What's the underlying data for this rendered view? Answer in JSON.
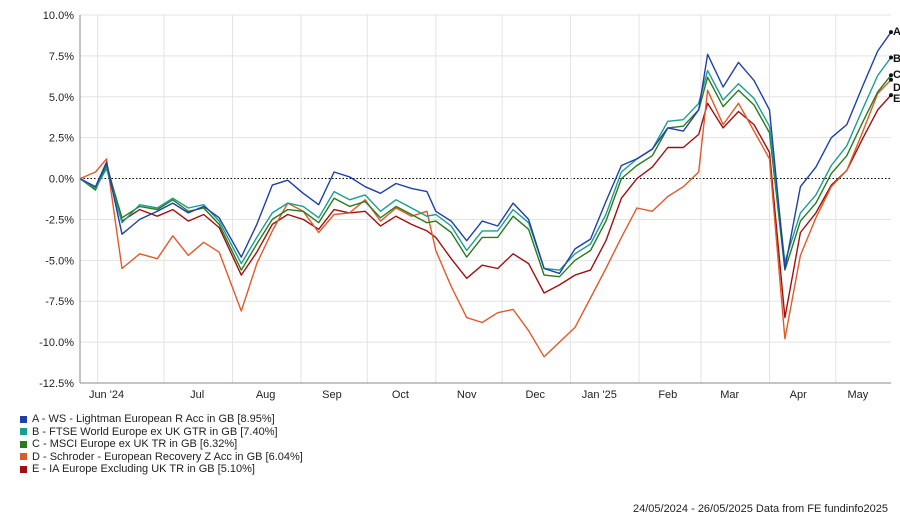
{
  "chart_data": {
    "type": "line",
    "x_tick_labels": [
      "Jun '24",
      "Jul",
      "Aug",
      "Sep",
      "Oct",
      "Nov",
      "Dec",
      "Jan '25",
      "Feb",
      "Mar",
      "Apr",
      "May"
    ],
    "y_tick_labels": [
      "10.0%",
      "7.5%",
      "5.0%",
      "2.5%",
      "0.0%",
      "-2.5%",
      "-5.0%",
      "-7.5%",
      "-10.0%",
      "-12.5%"
    ],
    "ylim": [
      -12.5,
      10.0
    ],
    "date_range": [
      "2024-05-24",
      "2025-05-26"
    ],
    "zero_line": "dotted",
    "grid": true,
    "series": [
      {
        "code": "A",
        "name": "A - WS - Lightman European R Acc in GB [8.95%]",
        "color": "#1f3faa",
        "points": [
          [
            "2024-05-24",
            0
          ],
          [
            "2024-05-31",
            -0.5
          ],
          [
            "2024-06-05",
            1.0
          ],
          [
            "2024-06-12",
            -3.4
          ],
          [
            "2024-06-20",
            -2.5
          ],
          [
            "2024-06-28",
            -2.0
          ],
          [
            "2024-07-05",
            -1.5
          ],
          [
            "2024-07-12",
            -2.1
          ],
          [
            "2024-07-19",
            -1.7
          ],
          [
            "2024-07-26",
            -2.4
          ],
          [
            "2024-08-05",
            -4.8
          ],
          [
            "2024-08-12",
            -2.8
          ],
          [
            "2024-08-19",
            -0.4
          ],
          [
            "2024-08-26",
            -0.1
          ],
          [
            "2024-09-02",
            -0.9
          ],
          [
            "2024-09-09",
            -1.6
          ],
          [
            "2024-09-16",
            0.4
          ],
          [
            "2024-09-23",
            0.1
          ],
          [
            "2024-09-30",
            -0.5
          ],
          [
            "2024-10-07",
            -0.9
          ],
          [
            "2024-10-14",
            -0.3
          ],
          [
            "2024-10-21",
            -0.6
          ],
          [
            "2024-10-28",
            -0.8
          ],
          [
            "2024-11-01",
            -2.0
          ],
          [
            "2024-11-08",
            -2.6
          ],
          [
            "2024-11-15",
            -3.8
          ],
          [
            "2024-11-22",
            -2.6
          ],
          [
            "2024-11-29",
            -2.9
          ],
          [
            "2024-12-06",
            -1.5
          ],
          [
            "2024-12-13",
            -2.5
          ],
          [
            "2024-12-20",
            -5.5
          ],
          [
            "2024-12-27",
            -5.8
          ],
          [
            "2025-01-03",
            -4.3
          ],
          [
            "2025-01-10",
            -3.7
          ],
          [
            "2025-01-17",
            -1.4
          ],
          [
            "2025-01-24",
            0.8
          ],
          [
            "2025-01-31",
            1.2
          ],
          [
            "2025-02-07",
            1.8
          ],
          [
            "2025-02-14",
            3.1
          ],
          [
            "2025-02-21",
            2.9
          ],
          [
            "2025-02-28",
            4.2
          ],
          [
            "2025-03-04",
            7.6
          ],
          [
            "2025-03-11",
            5.6
          ],
          [
            "2025-03-18",
            7.1
          ],
          [
            "2025-03-25",
            6.0
          ],
          [
            "2025-04-01",
            4.2
          ],
          [
            "2025-04-08",
            -5.5
          ],
          [
            "2025-04-15",
            -0.5
          ],
          [
            "2025-04-22",
            0.7
          ],
          [
            "2025-04-29",
            2.5
          ],
          [
            "2025-05-06",
            3.3
          ],
          [
            "2025-05-13",
            5.6
          ],
          [
            "2025-05-20",
            7.8
          ],
          [
            "2025-05-26",
            8.95
          ]
        ]
      },
      {
        "code": "B",
        "name": "B - FTSE World Europe ex UK GTR in GB [7.40%]",
        "color": "#1a9e8f",
        "points": [
          [
            "2024-05-24",
            0
          ],
          [
            "2024-05-31",
            -0.6
          ],
          [
            "2024-06-05",
            0.6
          ],
          [
            "2024-06-12",
            -2.7
          ],
          [
            "2024-06-20",
            -1.6
          ],
          [
            "2024-06-28",
            -1.8
          ],
          [
            "2024-07-05",
            -1.2
          ],
          [
            "2024-07-12",
            -1.8
          ],
          [
            "2024-07-19",
            -1.6
          ],
          [
            "2024-07-26",
            -2.6
          ],
          [
            "2024-08-05",
            -5.2
          ],
          [
            "2024-08-12",
            -3.6
          ],
          [
            "2024-08-19",
            -2.1
          ],
          [
            "2024-08-26",
            -1.5
          ],
          [
            "2024-09-02",
            -1.7
          ],
          [
            "2024-09-09",
            -2.4
          ],
          [
            "2024-09-16",
            -0.8
          ],
          [
            "2024-09-23",
            -1.3
          ],
          [
            "2024-09-30",
            -1.0
          ],
          [
            "2024-10-07",
            -2.0
          ],
          [
            "2024-10-14",
            -1.3
          ],
          [
            "2024-10-21",
            -1.8
          ],
          [
            "2024-10-28",
            -2.3
          ],
          [
            "2024-11-01",
            -2.2
          ],
          [
            "2024-11-08",
            -2.9
          ],
          [
            "2024-11-15",
            -4.4
          ],
          [
            "2024-11-22",
            -3.2
          ],
          [
            "2024-11-29",
            -3.2
          ],
          [
            "2024-12-06",
            -1.9
          ],
          [
            "2024-12-13",
            -2.7
          ],
          [
            "2024-12-20",
            -5.5
          ],
          [
            "2024-12-27",
            -5.6
          ],
          [
            "2025-01-03",
            -4.6
          ],
          [
            "2025-01-10",
            -4.0
          ],
          [
            "2025-01-17",
            -2.2
          ],
          [
            "2025-01-24",
            0.4
          ],
          [
            "2025-01-31",
            1.2
          ],
          [
            "2025-02-07",
            1.8
          ],
          [
            "2025-02-14",
            3.5
          ],
          [
            "2025-02-21",
            3.6
          ],
          [
            "2025-02-28",
            4.6
          ],
          [
            "2025-03-04",
            6.6
          ],
          [
            "2025-03-11",
            4.8
          ],
          [
            "2025-03-18",
            5.8
          ],
          [
            "2025-03-25",
            4.9
          ],
          [
            "2025-04-01",
            3.2
          ],
          [
            "2025-04-08",
            -5.1
          ],
          [
            "2025-04-15",
            -2.1
          ],
          [
            "2025-04-22",
            -1.0
          ],
          [
            "2025-04-29",
            0.8
          ],
          [
            "2025-05-06",
            2.0
          ],
          [
            "2025-05-13",
            4.2
          ],
          [
            "2025-05-20",
            6.3
          ],
          [
            "2025-05-26",
            7.4
          ]
        ]
      },
      {
        "code": "C",
        "name": "C - MSCI Europe ex UK TR in GB [6.32%]",
        "color": "#2a7a1c",
        "points": [
          [
            "2024-05-24",
            0
          ],
          [
            "2024-05-31",
            -0.7
          ],
          [
            "2024-06-05",
            0.8
          ],
          [
            "2024-06-12",
            -2.4
          ],
          [
            "2024-06-20",
            -1.7
          ],
          [
            "2024-06-28",
            -1.9
          ],
          [
            "2024-07-05",
            -1.3
          ],
          [
            "2024-07-12",
            -2.0
          ],
          [
            "2024-07-19",
            -1.8
          ],
          [
            "2024-07-26",
            -2.8
          ],
          [
            "2024-08-05",
            -5.6
          ],
          [
            "2024-08-12",
            -4.0
          ],
          [
            "2024-08-19",
            -2.5
          ],
          [
            "2024-08-26",
            -1.9
          ],
          [
            "2024-09-02",
            -2.0
          ],
          [
            "2024-09-09",
            -2.7
          ],
          [
            "2024-09-16",
            -1.2
          ],
          [
            "2024-09-23",
            -1.7
          ],
          [
            "2024-09-30",
            -1.4
          ],
          [
            "2024-10-07",
            -2.4
          ],
          [
            "2024-10-14",
            -1.7
          ],
          [
            "2024-10-21",
            -2.2
          ],
          [
            "2024-10-28",
            -2.7
          ],
          [
            "2024-11-01",
            -2.6
          ],
          [
            "2024-11-08",
            -3.3
          ],
          [
            "2024-11-15",
            -4.8
          ],
          [
            "2024-11-22",
            -3.6
          ],
          [
            "2024-11-29",
            -3.6
          ],
          [
            "2024-12-06",
            -2.3
          ],
          [
            "2024-12-13",
            -3.1
          ],
          [
            "2024-12-20",
            -5.9
          ],
          [
            "2024-12-27",
            -6.0
          ],
          [
            "2025-01-03",
            -5.0
          ],
          [
            "2025-01-10",
            -4.4
          ],
          [
            "2025-01-17",
            -2.6
          ],
          [
            "2025-01-24",
            0.0
          ],
          [
            "2025-01-31",
            0.8
          ],
          [
            "2025-02-07",
            1.4
          ],
          [
            "2025-02-14",
            3.1
          ],
          [
            "2025-02-21",
            3.2
          ],
          [
            "2025-02-28",
            4.2
          ],
          [
            "2025-03-04",
            6.2
          ],
          [
            "2025-03-11",
            4.4
          ],
          [
            "2025-03-18",
            5.4
          ],
          [
            "2025-03-25",
            4.5
          ],
          [
            "2025-04-01",
            2.8
          ],
          [
            "2025-04-08",
            -5.6
          ],
          [
            "2025-04-15",
            -2.6
          ],
          [
            "2025-04-22",
            -1.5
          ],
          [
            "2025-04-29",
            0.3
          ],
          [
            "2025-05-06",
            1.4
          ],
          [
            "2025-05-13",
            3.4
          ],
          [
            "2025-05-20",
            5.3
          ],
          [
            "2025-05-26",
            6.32
          ]
        ]
      },
      {
        "code": "D",
        "name": "D - Schroder - European Recovery Z Acc in GB [6.04%]",
        "color": "#e05a2a",
        "points": [
          [
            "2024-05-24",
            0
          ],
          [
            "2024-05-31",
            0.4
          ],
          [
            "2024-06-05",
            1.2
          ],
          [
            "2024-06-12",
            -5.5
          ],
          [
            "2024-06-20",
            -4.6
          ],
          [
            "2024-06-28",
            -4.9
          ],
          [
            "2024-07-05",
            -3.5
          ],
          [
            "2024-07-12",
            -4.7
          ],
          [
            "2024-07-19",
            -3.9
          ],
          [
            "2024-07-26",
            -4.5
          ],
          [
            "2024-08-05",
            -8.1
          ],
          [
            "2024-08-12",
            -5.2
          ],
          [
            "2024-08-19",
            -3.2
          ],
          [
            "2024-08-26",
            -1.5
          ],
          [
            "2024-09-02",
            -2.0
          ],
          [
            "2024-09-09",
            -3.3
          ],
          [
            "2024-09-16",
            -2.2
          ],
          [
            "2024-09-23",
            -2.1
          ],
          [
            "2024-09-30",
            -1.3
          ],
          [
            "2024-10-07",
            -2.6
          ],
          [
            "2024-10-14",
            -1.8
          ],
          [
            "2024-10-21",
            -2.3
          ],
          [
            "2024-10-28",
            -2.0
          ],
          [
            "2024-11-01",
            -4.4
          ],
          [
            "2024-11-08",
            -6.6
          ],
          [
            "2024-11-15",
            -8.5
          ],
          [
            "2024-11-22",
            -8.8
          ],
          [
            "2024-11-29",
            -8.2
          ],
          [
            "2024-12-06",
            -8.0
          ],
          [
            "2024-12-13",
            -9.3
          ],
          [
            "2024-12-20",
            -10.9
          ],
          [
            "2024-12-27",
            -10.0
          ],
          [
            "2025-01-03",
            -9.1
          ],
          [
            "2025-01-10",
            -7.3
          ],
          [
            "2025-01-17",
            -5.5
          ],
          [
            "2025-01-24",
            -3.6
          ],
          [
            "2025-01-31",
            -1.8
          ],
          [
            "2025-02-07",
            -2.0
          ],
          [
            "2025-02-14",
            -1.1
          ],
          [
            "2025-02-21",
            -0.5
          ],
          [
            "2025-02-28",
            0.4
          ],
          [
            "2025-03-04",
            5.4
          ],
          [
            "2025-03-11",
            3.3
          ],
          [
            "2025-03-18",
            4.6
          ],
          [
            "2025-03-25",
            2.9
          ],
          [
            "2025-04-01",
            1.2
          ],
          [
            "2025-04-08",
            -9.8
          ],
          [
            "2025-04-15",
            -4.7
          ],
          [
            "2025-04-22",
            -2.4
          ],
          [
            "2025-04-29",
            -0.5
          ],
          [
            "2025-05-06",
            0.5
          ],
          [
            "2025-05-13",
            2.8
          ],
          [
            "2025-05-20",
            5.2
          ],
          [
            "2025-05-26",
            6.04
          ]
        ]
      },
      {
        "code": "E",
        "name": "E - IA Europe Excluding UK TR in GB [5.10%]",
        "color": "#a01010",
        "points": [
          [
            "2024-05-24",
            0
          ],
          [
            "2024-05-31",
            -0.6
          ],
          [
            "2024-06-05",
            0.9
          ],
          [
            "2024-06-12",
            -2.6
          ],
          [
            "2024-06-20",
            -1.9
          ],
          [
            "2024-06-28",
            -2.3
          ],
          [
            "2024-07-05",
            -1.9
          ],
          [
            "2024-07-12",
            -2.6
          ],
          [
            "2024-07-19",
            -2.2
          ],
          [
            "2024-07-26",
            -3.0
          ],
          [
            "2024-08-05",
            -5.9
          ],
          [
            "2024-08-12",
            -4.5
          ],
          [
            "2024-08-19",
            -2.8
          ],
          [
            "2024-08-26",
            -2.2
          ],
          [
            "2024-09-02",
            -2.5
          ],
          [
            "2024-09-09",
            -3.1
          ],
          [
            "2024-09-16",
            -1.9
          ],
          [
            "2024-09-23",
            -2.1
          ],
          [
            "2024-09-30",
            -2.0
          ],
          [
            "2024-10-07",
            -2.9
          ],
          [
            "2024-10-14",
            -2.3
          ],
          [
            "2024-10-21",
            -2.8
          ],
          [
            "2024-10-28",
            -3.2
          ],
          [
            "2024-11-01",
            -3.6
          ],
          [
            "2024-11-08",
            -4.9
          ],
          [
            "2024-11-15",
            -6.1
          ],
          [
            "2024-11-22",
            -5.3
          ],
          [
            "2024-11-29",
            -5.5
          ],
          [
            "2024-12-06",
            -4.6
          ],
          [
            "2024-12-13",
            -5.2
          ],
          [
            "2024-12-20",
            -7.0
          ],
          [
            "2024-12-27",
            -6.5
          ],
          [
            "2025-01-03",
            -5.9
          ],
          [
            "2025-01-10",
            -5.6
          ],
          [
            "2025-01-17",
            -3.8
          ],
          [
            "2025-01-24",
            -1.2
          ],
          [
            "2025-01-31",
            0.0
          ],
          [
            "2025-02-07",
            0.7
          ],
          [
            "2025-02-14",
            1.9
          ],
          [
            "2025-02-21",
            1.9
          ],
          [
            "2025-02-28",
            2.7
          ],
          [
            "2025-03-04",
            4.6
          ],
          [
            "2025-03-11",
            3.1
          ],
          [
            "2025-03-18",
            4.1
          ],
          [
            "2025-03-25",
            3.3
          ],
          [
            "2025-04-01",
            1.6
          ],
          [
            "2025-04-08",
            -8.5
          ],
          [
            "2025-04-15",
            -3.3
          ],
          [
            "2025-04-22",
            -2.1
          ],
          [
            "2025-04-29",
            -0.4
          ],
          [
            "2025-05-06",
            0.5
          ],
          [
            "2025-05-13",
            2.4
          ],
          [
            "2025-05-20",
            4.2
          ],
          [
            "2025-05-26",
            5.1
          ]
        ]
      }
    ]
  },
  "footer": {
    "text": "24/05/2024 - 26/05/2025 Data from FE fundinfo2025"
  }
}
